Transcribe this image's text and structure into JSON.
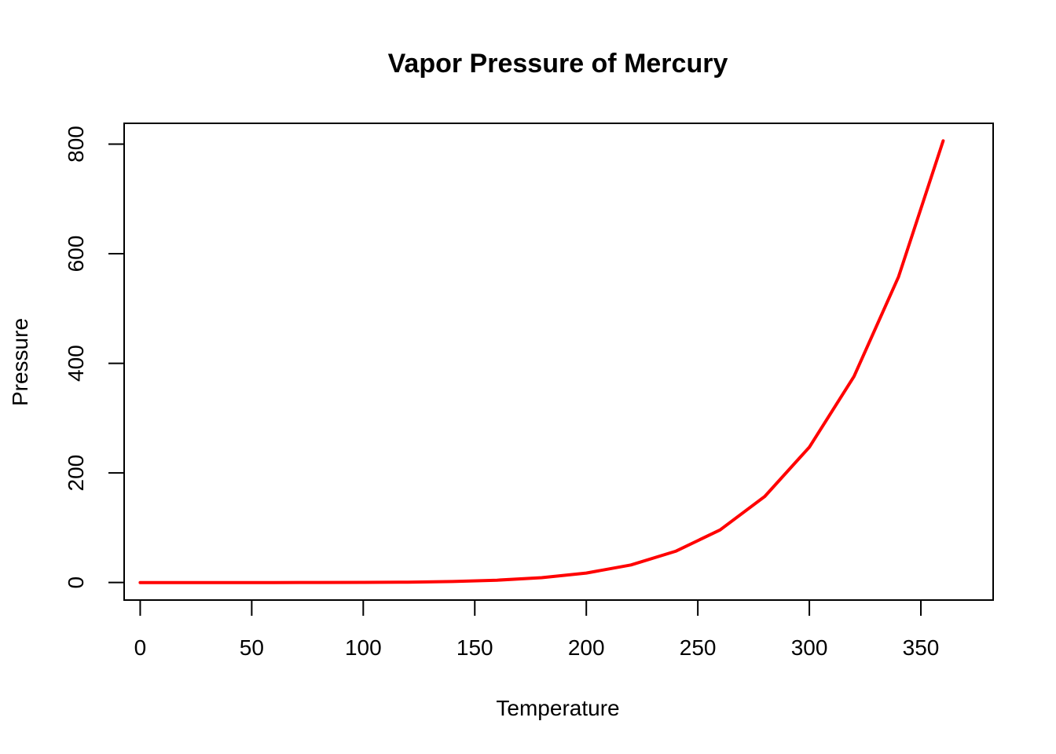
{
  "chart_data": {
    "type": "line",
    "title": "Vapor Pressure of Mercury",
    "xlabel": "Temperature",
    "ylabel": "Pressure",
    "xlim": [
      -7.2,
      382.4
    ],
    "ylim": [
      -32,
      838
    ],
    "x_ticks": [
      0,
      50,
      100,
      150,
      200,
      250,
      300,
      350
    ],
    "y_ticks": [
      0,
      200,
      400,
      600,
      800
    ],
    "grid": false,
    "legend": "none",
    "series": [
      {
        "color": "#ff0000",
        "x": [
          0,
          20,
          40,
          60,
          80,
          100,
          120,
          140,
          160,
          180,
          200,
          220,
          240,
          260,
          280,
          300,
          320,
          340,
          360
        ],
        "y": [
          0.0002,
          0.0012,
          0.006,
          0.03,
          0.09,
          0.27,
          0.75,
          1.85,
          4.2,
          8.8,
          17.3,
          32.1,
          57,
          96,
          157,
          247,
          376,
          558,
          806
        ]
      }
    ]
  }
}
